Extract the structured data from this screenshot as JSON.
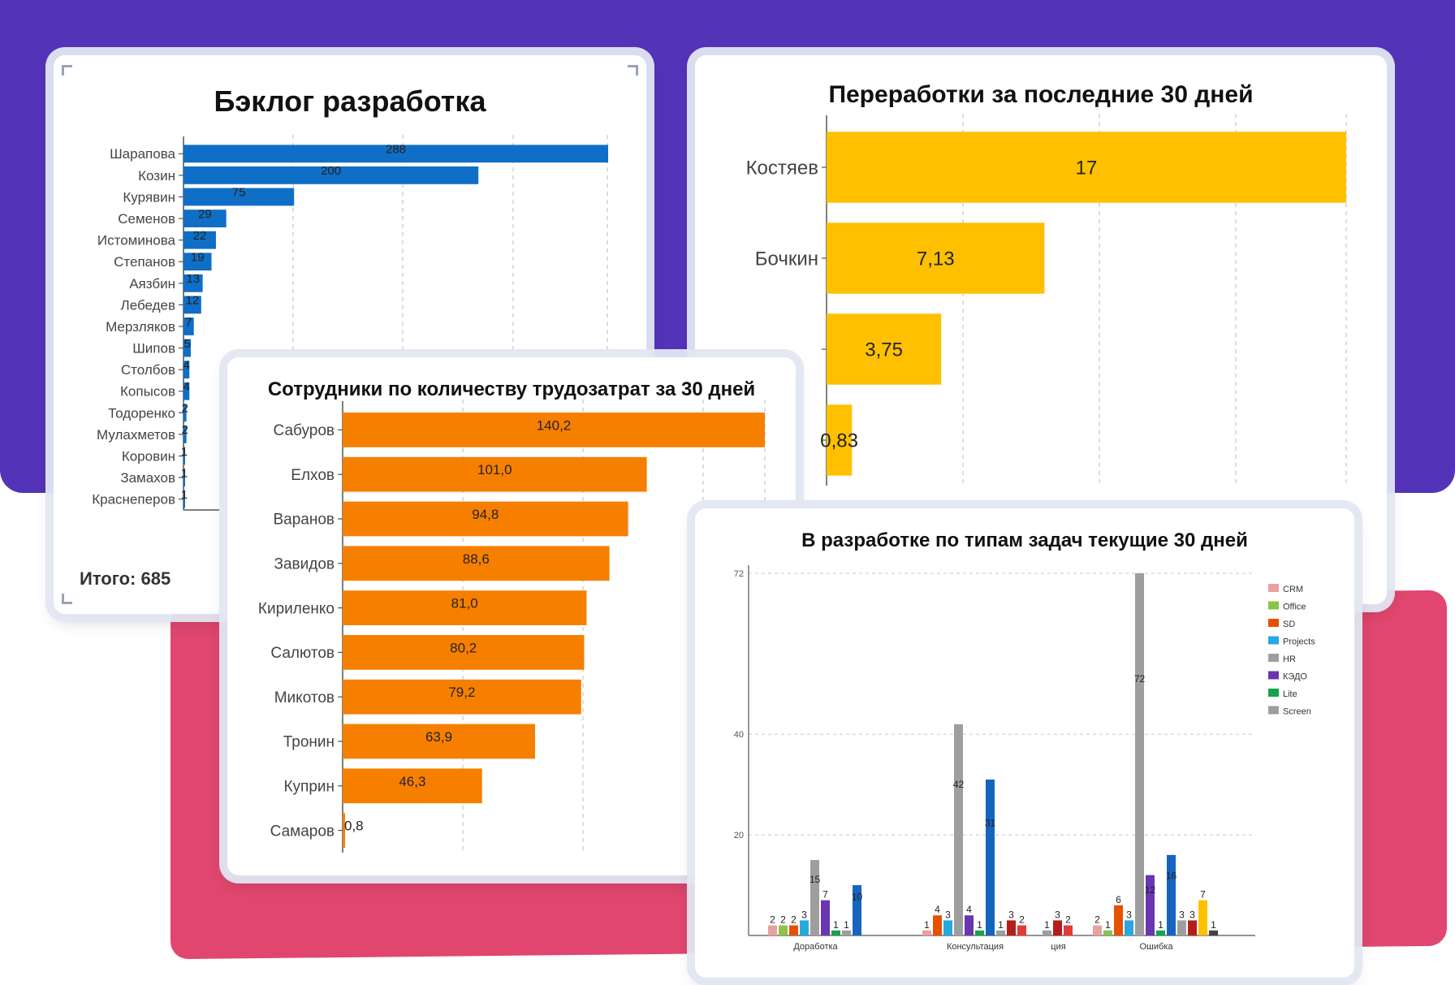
{
  "colors": {
    "background_top": "#5334b8",
    "background_bottom": "#e0466e",
    "backlog": "#0f6fc6",
    "overtime": "#ffc000",
    "labor": "#f77f00"
  },
  "backlog": {
    "title": "Бэклог разработка",
    "total": "Итого: 685",
    "chart_data": {
      "type": "bar",
      "orientation": "horizontal",
      "title": "Бэклог разработка",
      "categories": [
        "Шарапова",
        "Козин",
        "Курявин",
        "Семенов",
        "Истоминова",
        "Степанов",
        "Аязбин",
        "Лебедев",
        "Мерзляков",
        "Шипов",
        "Столбов",
        "Копысов",
        "Тодоренко",
        "Мулахметов",
        "Коровин",
        "Замахов",
        "Краснеперов"
      ],
      "values": [
        288,
        200,
        75,
        29,
        22,
        19,
        13,
        12,
        7,
        5,
        4,
        4,
        2,
        2,
        1,
        1,
        1
      ],
      "grid": true
    }
  },
  "overtime": {
    "title": "Переработки за последние 30 дней",
    "chart_data": {
      "type": "bar",
      "orientation": "horizontal",
      "title": "Переработки за последние 30 дней",
      "categories": [
        "Костяев",
        "Бочкин",
        "",
        ""
      ],
      "values": [
        17,
        7.13,
        3.75,
        0.83
      ],
      "labels": [
        "17",
        "7,13",
        "3,75",
        "0,83"
      ],
      "grid": true
    }
  },
  "labor": {
    "title": "Сотрудники по количеству трудозатрат за 30 дней",
    "chart_data": {
      "type": "bar",
      "orientation": "horizontal",
      "title": "Сотрудники по количеству трудозатрат за 30 дней",
      "categories": [
        "Сабуров",
        "Елхов",
        "Варанов",
        "Завидов",
        "Кириленко",
        "Салютов",
        "Микотов",
        "Тронин",
        "Куприн",
        "Самаров"
      ],
      "values": [
        140.2,
        101.0,
        94.8,
        88.6,
        81.0,
        80.2,
        79.2,
        63.9,
        46.3,
        0.8
      ],
      "labels": [
        "140,2",
        "101,0",
        "94,8",
        "88,6",
        "81,0",
        "80,2",
        "79,2",
        "63,9",
        "46,3",
        "0,8"
      ],
      "grid": true
    }
  },
  "tasks": {
    "title": "В разработке по типам задач текущие 30 дней",
    "chart_data": {
      "type": "bar",
      "title": "В разработке по типам задач текущие 30 дней",
      "categories": [
        "Доработка",
        "Консультация",
        "ция",
        "Ошибка"
      ],
      "y_ticks": [
        20,
        40,
        72
      ],
      "ylim": [
        0,
        72
      ],
      "legend_position": "top-right",
      "legend": [
        {
          "name": "CRM",
          "color": "#e8a0a0"
        },
        {
          "name": "Office",
          "color": "#8bc34a"
        },
        {
          "name": "SD",
          "color": "#e65100"
        },
        {
          "name": "Projects",
          "color": "#29a8e0"
        },
        {
          "name": "HR",
          "color": "#9e9e9e"
        },
        {
          "name": "КЭДО",
          "color": "#6a35b0"
        },
        {
          "name": "Lite",
          "color": "#16a34a"
        },
        {
          "name": "Screen",
          "color": "#9e9e9e"
        }
      ],
      "groups": [
        {
          "category": "Доработка",
          "bars": [
            {
              "value": 2,
              "color": "#e8a0a0",
              "label": "2"
            },
            {
              "value": 2,
              "color": "#8bc34a",
              "label": "2"
            },
            {
              "value": 2,
              "color": "#e65100",
              "label": "2"
            },
            {
              "value": 3,
              "color": "#29a8e0",
              "label": "3"
            },
            {
              "value": 15,
              "color": "#9e9e9e",
              "label": "15"
            },
            {
              "value": 7,
              "color": "#6a35b0",
              "label": "7"
            },
            {
              "value": 1,
              "color": "#16a34a",
              "label": "1"
            },
            {
              "value": 1,
              "color": "#9e9e9e",
              "label": "1"
            },
            {
              "value": 10,
              "color": "#1565c0",
              "label": "10"
            }
          ]
        },
        {
          "category": "Консультация",
          "bars": [
            {
              "value": 1,
              "color": "#e8a0a0",
              "label": "1"
            },
            {
              "value": 4,
              "color": "#e65100",
              "label": "4"
            },
            {
              "value": 3,
              "color": "#29a8e0",
              "label": "3"
            },
            {
              "value": 42,
              "color": "#9e9e9e",
              "label": "42"
            },
            {
              "value": 4,
              "color": "#6a35b0",
              "label": "4"
            },
            {
              "value": 1,
              "color": "#16a34a",
              "label": "1"
            },
            {
              "value": 31,
              "color": "#1565c0",
              "label": "31"
            },
            {
              "value": 1,
              "color": "#9e9e9e",
              "label": "1"
            },
            {
              "value": 3,
              "color": "#b71c1c",
              "label": "3"
            },
            {
              "value": 2,
              "color": "#e53935",
              "label": "2"
            }
          ]
        },
        {
          "category": "ция",
          "bars": [
            {
              "value": 1,
              "color": "#9e9e9e",
              "label": "1"
            },
            {
              "value": 3,
              "color": "#b71c1c",
              "label": "3"
            },
            {
              "value": 2,
              "color": "#e53935",
              "label": "2"
            }
          ]
        },
        {
          "category": "Ошибка",
          "bars": [
            {
              "value": 2,
              "color": "#e8a0a0",
              "label": "2"
            },
            {
              "value": 1,
              "color": "#8bc34a",
              "label": "1"
            },
            {
              "value": 6,
              "color": "#e65100",
              "label": "6"
            },
            {
              "value": 3,
              "color": "#29a8e0",
              "label": "3"
            },
            {
              "value": 72,
              "color": "#9e9e9e",
              "label": "72"
            },
            {
              "value": 12,
              "color": "#6a35b0",
              "label": "12"
            },
            {
              "value": 1,
              "color": "#16a34a",
              "label": "1"
            },
            {
              "value": 16,
              "color": "#1565c0",
              "label": "16"
            },
            {
              "value": 3,
              "color": "#9e9e9e",
              "label": "3"
            },
            {
              "value": 3,
              "color": "#b71c1c",
              "label": "3"
            },
            {
              "value": 7,
              "color": "#ffc000",
              "label": "7"
            },
            {
              "value": 1,
              "color": "#424242",
              "label": "1"
            }
          ]
        }
      ]
    }
  }
}
